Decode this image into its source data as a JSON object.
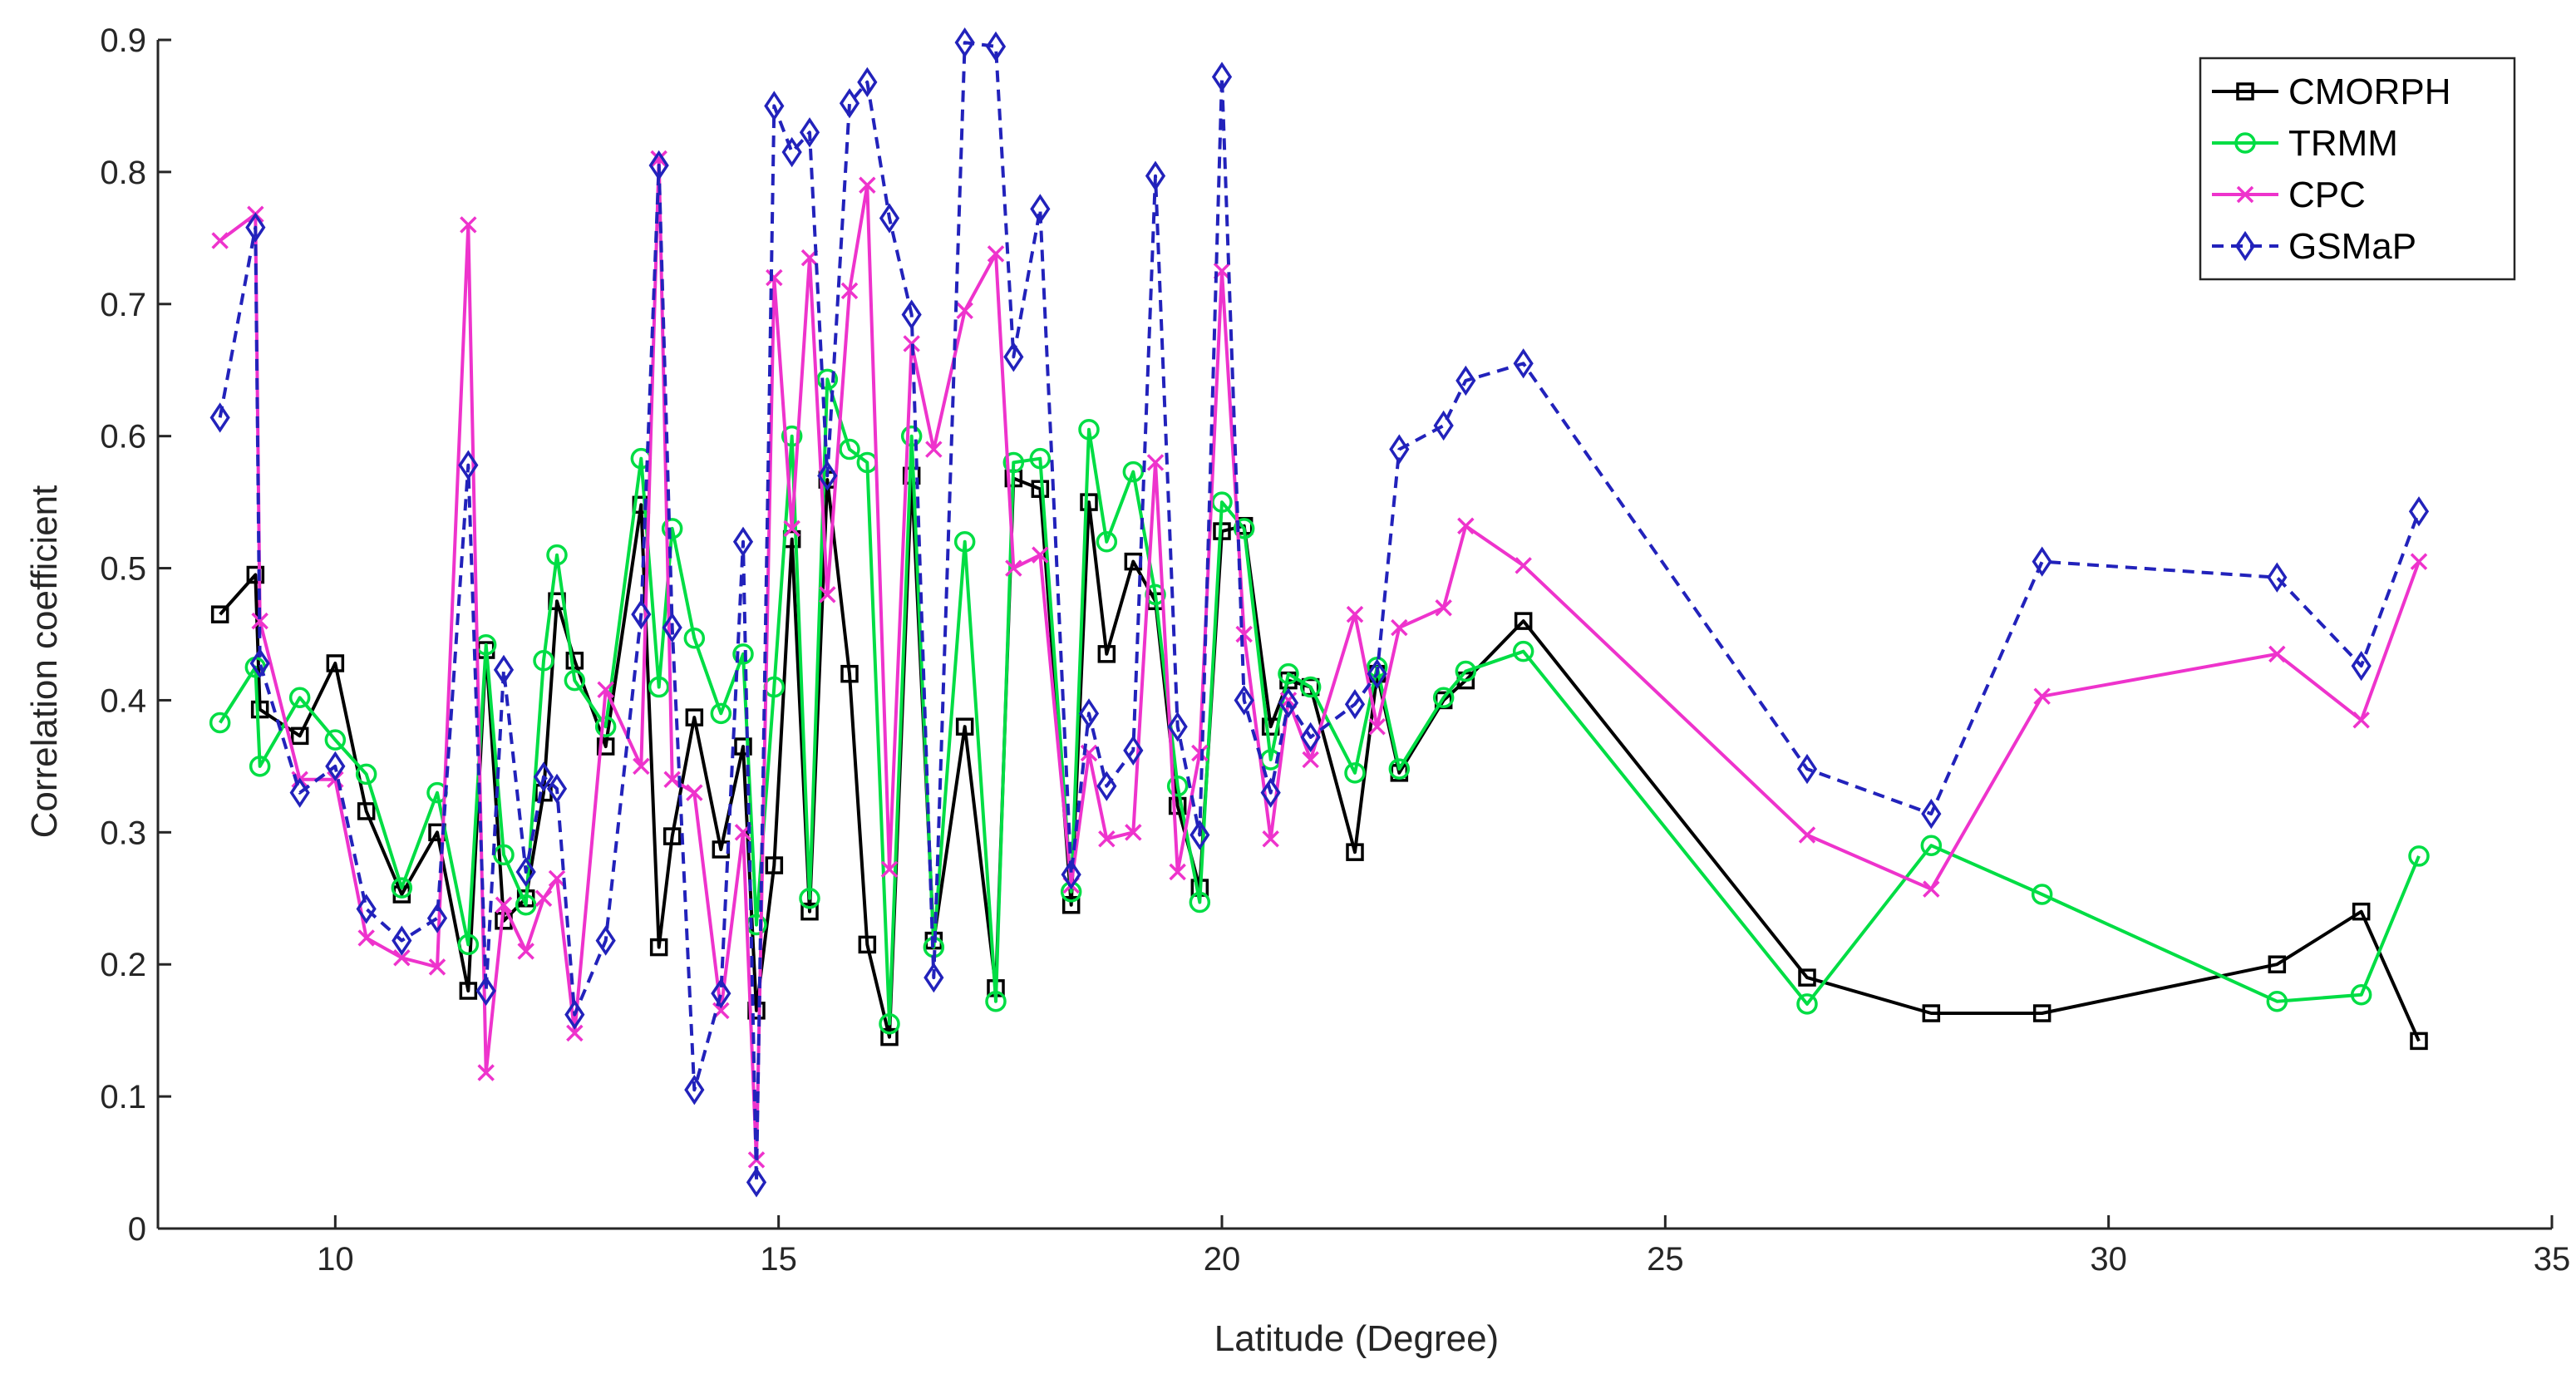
{
  "chart_data": {
    "type": "line",
    "title": "",
    "xlabel": "Latitude (Degree)",
    "ylabel": "Correlation coefficient",
    "xlim": [
      8,
      35
    ],
    "ylim": [
      0,
      0.9
    ],
    "xticks": [
      10,
      15,
      20,
      25,
      30,
      35
    ],
    "yticks": [
      0,
      0.1,
      0.2,
      0.3,
      0.4,
      0.5,
      0.6,
      0.7,
      0.8,
      0.9
    ],
    "xtick_labels": [
      "10",
      "15",
      "20",
      "25",
      "30",
      "35"
    ],
    "ytick_labels": [
      "0",
      "0.1",
      "0.2",
      "0.3",
      "0.4",
      "0.5",
      "0.6",
      "0.7",
      "0.8",
      "0.9"
    ],
    "grid": false,
    "legend_position": "top-right",
    "series": [
      {
        "name": "CMORPH",
        "color": "#000000",
        "marker": "square",
        "dash": "solid",
        "x": [
          8.7,
          9.1,
          9.15,
          9.6,
          10.0,
          10.35,
          10.75,
          11.15,
          11.5,
          11.7,
          11.9,
          12.15,
          12.35,
          12.5,
          12.7,
          13.05,
          13.45,
          13.65,
          13.8,
          14.05,
          14.35,
          14.6,
          14.75,
          14.95,
          15.15,
          15.35,
          15.55,
          15.8,
          16.0,
          16.25,
          16.5,
          16.75,
          17.1,
          17.45,
          17.65,
          17.95,
          18.3,
          18.5,
          18.7,
          19.0,
          19.25,
          19.5,
          19.75,
          20.0,
          20.25,
          20.55,
          20.75,
          21.0,
          21.5,
          21.75,
          22.0,
          22.5,
          22.75,
          23.4,
          26.6,
          28.0,
          29.25,
          31.9,
          32.85,
          33.5
        ],
        "values": [
          0.465,
          0.495,
          0.393,
          0.373,
          0.428,
          0.316,
          0.253,
          0.3,
          0.18,
          0.438,
          0.233,
          0.25,
          0.33,
          0.475,
          0.43,
          0.365,
          0.548,
          0.213,
          0.297,
          0.387,
          0.287,
          0.365,
          0.165,
          0.275,
          0.522,
          0.24,
          0.567,
          0.42,
          0.215,
          0.145,
          0.57,
          0.218,
          0.38,
          0.182,
          0.568,
          0.56,
          0.245,
          0.55,
          0.435,
          0.505,
          0.475,
          0.32,
          0.258,
          0.528,
          0.532,
          0.38,
          0.415,
          0.41,
          0.285,
          0.42,
          0.345,
          0.4,
          0.415,
          0.46,
          0.19,
          0.163,
          0.163,
          0.2,
          0.24,
          0.142
        ]
      },
      {
        "name": "TRMM",
        "color": "#00dd44",
        "marker": "circle",
        "dash": "solid",
        "x": [
          8.7,
          9.1,
          9.15,
          9.6,
          10.0,
          10.35,
          10.75,
          11.15,
          11.5,
          11.7,
          11.9,
          12.15,
          12.35,
          12.5,
          12.7,
          13.05,
          13.45,
          13.65,
          13.8,
          14.05,
          14.35,
          14.6,
          14.75,
          14.95,
          15.15,
          15.35,
          15.55,
          15.8,
          16.0,
          16.25,
          16.5,
          16.75,
          17.1,
          17.45,
          17.65,
          17.95,
          18.3,
          18.5,
          18.7,
          19.0,
          19.25,
          19.5,
          19.75,
          20.0,
          20.25,
          20.55,
          20.75,
          21.0,
          21.5,
          21.75,
          22.0,
          22.5,
          22.75,
          23.4,
          26.6,
          28.0,
          29.25,
          31.9,
          32.85,
          33.5
        ],
        "values": [
          0.383,
          0.425,
          0.35,
          0.402,
          0.37,
          0.344,
          0.258,
          0.33,
          0.215,
          0.442,
          0.283,
          0.245,
          0.43,
          0.51,
          0.415,
          0.38,
          0.583,
          0.41,
          0.53,
          0.447,
          0.39,
          0.435,
          0.23,
          0.41,
          0.6,
          0.25,
          0.643,
          0.59,
          0.58,
          0.155,
          0.6,
          0.213,
          0.52,
          0.172,
          0.58,
          0.583,
          0.255,
          0.605,
          0.52,
          0.573,
          0.48,
          0.335,
          0.247,
          0.55,
          0.53,
          0.355,
          0.42,
          0.41,
          0.345,
          0.425,
          0.348,
          0.402,
          0.422,
          0.437,
          0.17,
          0.29,
          0.253,
          0.172,
          0.177,
          0.282
        ]
      },
      {
        "name": "CPC",
        "color": "#ee33cc",
        "marker": "x",
        "dash": "solid",
        "x": [
          8.7,
          9.1,
          9.15,
          9.6,
          10.0,
          10.35,
          10.75,
          11.15,
          11.5,
          11.7,
          11.9,
          12.15,
          12.35,
          12.5,
          12.7,
          13.05,
          13.45,
          13.65,
          13.8,
          14.05,
          14.35,
          14.6,
          14.75,
          14.95,
          15.15,
          15.35,
          15.55,
          15.8,
          16.0,
          16.25,
          16.5,
          16.75,
          17.1,
          17.45,
          17.65,
          17.95,
          18.3,
          18.5,
          18.7,
          19.0,
          19.25,
          19.5,
          19.75,
          20.0,
          20.25,
          20.55,
          20.75,
          21.0,
          21.5,
          21.75,
          22.0,
          22.5,
          22.75,
          23.4,
          26.6,
          28.0,
          29.25,
          31.9,
          32.85,
          33.5
        ],
        "values": [
          0.748,
          0.768,
          0.46,
          0.34,
          0.34,
          0.22,
          0.205,
          0.198,
          0.76,
          0.118,
          0.245,
          0.21,
          0.25,
          0.265,
          0.148,
          0.408,
          0.35,
          0.81,
          0.34,
          0.33,
          0.165,
          0.3,
          0.052,
          0.72,
          0.53,
          0.735,
          0.48,
          0.71,
          0.79,
          0.272,
          0.67,
          0.59,
          0.695,
          0.738,
          0.5,
          0.51,
          0.26,
          0.36,
          0.295,
          0.3,
          0.58,
          0.27,
          0.36,
          0.725,
          0.45,
          0.295,
          0.4,
          0.355,
          0.465,
          0.38,
          0.455,
          0.47,
          0.532,
          0.502,
          0.298,
          0.257,
          0.403,
          0.435,
          0.385,
          0.505
        ]
      },
      {
        "name": "GSMaP",
        "color": "#2222bb",
        "marker": "diamond",
        "dash": "dashed",
        "x": [
          8.7,
          9.1,
          9.15,
          9.6,
          10.0,
          10.35,
          10.75,
          11.15,
          11.5,
          11.7,
          11.9,
          12.15,
          12.35,
          12.5,
          12.7,
          13.05,
          13.45,
          13.65,
          13.8,
          14.05,
          14.35,
          14.6,
          14.75,
          14.95,
          15.15,
          15.35,
          15.55,
          15.8,
          16.0,
          16.25,
          16.5,
          16.75,
          17.1,
          17.45,
          17.65,
          17.95,
          18.3,
          18.5,
          18.7,
          19.0,
          19.25,
          19.5,
          19.75,
          20.0,
          20.25,
          20.55,
          20.75,
          21.0,
          21.5,
          21.75,
          22.0,
          22.5,
          22.75,
          23.4,
          26.6,
          28.0,
          29.25,
          31.9,
          32.85,
          33.5
        ],
        "values": [
          0.614,
          0.758,
          0.428,
          0.33,
          0.35,
          0.242,
          0.218,
          0.235,
          0.578,
          0.18,
          0.423,
          0.27,
          0.342,
          0.333,
          0.162,
          0.218,
          0.465,
          0.805,
          0.455,
          0.105,
          0.178,
          0.52,
          0.035,
          0.85,
          0.815,
          0.83,
          0.57,
          0.852,
          0.868,
          0.765,
          0.692,
          0.19,
          0.898,
          0.895,
          0.66,
          0.772,
          0.268,
          0.39,
          0.335,
          0.362,
          0.797,
          0.38,
          0.298,
          0.872,
          0.4,
          0.33,
          0.398,
          0.372,
          0.397,
          0.42,
          0.59,
          0.608,
          0.642,
          0.655,
          0.348,
          0.314,
          0.505,
          0.493,
          0.426,
          0.543
        ]
      }
    ]
  }
}
